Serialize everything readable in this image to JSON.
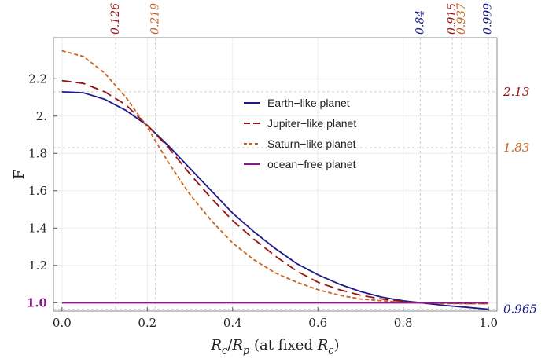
{
  "chart_data": {
    "type": "line",
    "xlabel": "R_c/R_p (at fixed R_c)",
    "xlabel_parts": [
      "R",
      "c",
      "/",
      "R",
      "p",
      " (at fixed ",
      "R",
      "c",
      ")"
    ],
    "ylabel": "F",
    "xlim": [
      -0.02,
      1.02
    ],
    "ylim": [
      0.955,
      2.42
    ],
    "x_ticks": [
      "0.0",
      "0.2",
      "0.4",
      "0.6",
      "0.8",
      "1.0"
    ],
    "x_tick_values": [
      0.0,
      0.2,
      0.4,
      0.6,
      0.8,
      1.0
    ],
    "y_ticks": [
      "1.0",
      "1.2",
      "1.4",
      "1.6",
      "1.8",
      "2.",
      "2.2"
    ],
    "y_tick_values": [
      1.0,
      1.2,
      1.4,
      1.6,
      1.8,
      2.0,
      2.2
    ],
    "grid": true,
    "legend_position": "top-right",
    "series": [
      {
        "name": "Earth−like planet",
        "color": "#1a1a8c",
        "dash": "solid",
        "x": [
          0.0,
          0.05,
          0.1,
          0.15,
          0.2,
          0.25,
          0.3,
          0.35,
          0.4,
          0.45,
          0.5,
          0.55,
          0.6,
          0.65,
          0.7,
          0.75,
          0.8,
          0.84,
          0.9,
          0.95,
          1.0
        ],
        "y": [
          2.13,
          2.125,
          2.09,
          2.03,
          1.95,
          1.84,
          1.72,
          1.6,
          1.48,
          1.38,
          1.29,
          1.21,
          1.15,
          1.1,
          1.06,
          1.03,
          1.01,
          1.0,
          0.985,
          0.975,
          0.965
        ]
      },
      {
        "name": "Jupiter−like planet",
        "color": "#a01010",
        "dash": "long",
        "x": [
          0.0,
          0.05,
          0.1,
          0.15,
          0.2,
          0.25,
          0.3,
          0.35,
          0.4,
          0.45,
          0.5,
          0.55,
          0.6,
          0.65,
          0.7,
          0.75,
          0.8,
          0.85,
          0.9,
          0.915,
          0.95,
          1.0
        ],
        "y": [
          2.19,
          2.175,
          2.13,
          2.06,
          1.95,
          1.83,
          1.69,
          1.56,
          1.44,
          1.34,
          1.25,
          1.17,
          1.11,
          1.07,
          1.04,
          1.02,
          1.005,
          1.0,
          0.998,
          0.997,
          0.996,
          0.996
        ]
      },
      {
        "name": "Saturn−like planet",
        "color": "#c8641e",
        "dash": "short",
        "x": [
          0.0,
          0.05,
          0.1,
          0.15,
          0.2,
          0.25,
          0.3,
          0.35,
          0.4,
          0.45,
          0.5,
          0.55,
          0.6,
          0.65,
          0.7,
          0.75,
          0.8,
          0.85,
          0.9,
          0.937,
          0.95,
          1.0
        ],
        "y": [
          2.35,
          2.32,
          2.23,
          2.1,
          1.94,
          1.75,
          1.58,
          1.44,
          1.32,
          1.23,
          1.16,
          1.11,
          1.07,
          1.04,
          1.02,
          1.01,
          1.002,
          0.999,
          0.996,
          0.995,
          0.995,
          0.995
        ]
      },
      {
        "name": "ocean−free planet",
        "color": "#8b1a8b",
        "dash": "solid",
        "x": [
          0.0,
          1.0
        ],
        "y": [
          1.0,
          1.0
        ]
      }
    ],
    "top_markers": [
      {
        "label": "0.126",
        "x": 0.126,
        "color": "#a01010"
      },
      {
        "label": "0.219",
        "x": 0.219,
        "color": "#c8641e"
      },
      {
        "label": "0.84",
        "x": 0.84,
        "color": "#1a1a8c"
      },
      {
        "label": "0.915",
        "x": 0.915,
        "color": "#a01010"
      },
      {
        "label": "0.937",
        "x": 0.937,
        "color": "#c8641e"
      },
      {
        "label": "0.999",
        "x": 0.999,
        "color": "#1a1a8c"
      }
    ],
    "right_markers": [
      {
        "label": "2.13",
        "y": 2.13,
        "color": "#a01010"
      },
      {
        "label": "1.83",
        "y": 1.83,
        "color": "#c8641e"
      },
      {
        "label": "0.965",
        "y": 0.965,
        "color": "#1a1a8c"
      }
    ],
    "highlight_ytick": {
      "label": "1.0",
      "color": "#8b1a8b"
    }
  }
}
